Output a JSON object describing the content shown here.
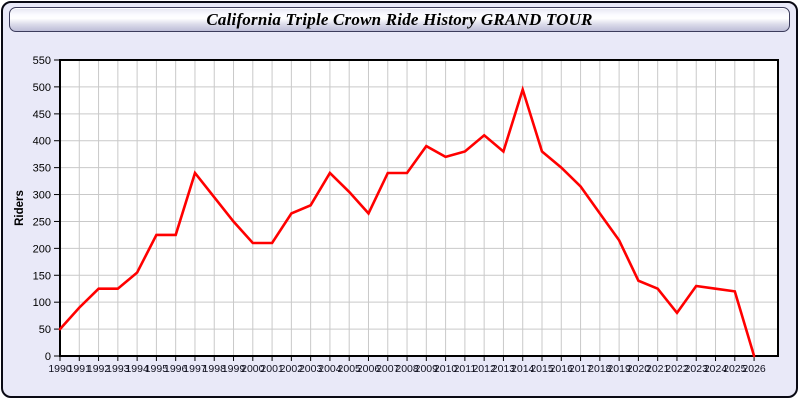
{
  "title_bar": {
    "text": "California Triple Crown Ride History GRAND TOUR"
  },
  "colors": {
    "line": "#ff0000",
    "plot_bg": "#ffffff",
    "grid": "#c9c9c9",
    "frame": "#000000",
    "page_bg": "#e9e9f8",
    "tick_label": "#10101e"
  },
  "chart_data": {
    "type": "line",
    "title": "California Triple Crown Ride History GRAND TOUR",
    "xlabel": "",
    "ylabel": "Riders",
    "ylim": [
      0,
      550
    ],
    "ytick_step": 50,
    "grid": true,
    "legend": "none",
    "x": [
      1990,
      1991,
      1992,
      1993,
      1994,
      1995,
      1996,
      1997,
      1998,
      1999,
      2000,
      2001,
      2002,
      2003,
      2004,
      2005,
      2006,
      2007,
      2008,
      2009,
      2010,
      2011,
      2012,
      2013,
      2014,
      2015,
      2016,
      2017,
      2018,
      2019,
      2020,
      2021,
      2022,
      2023,
      2024,
      2025,
      2026
    ],
    "series": [
      {
        "name": "Riders",
        "color": "#ff0000",
        "values": [
          50,
          90,
          125,
          125,
          155,
          225,
          225,
          340,
          295,
          250,
          210,
          210,
          265,
          280,
          340,
          305,
          265,
          340,
          340,
          390,
          370,
          380,
          410,
          380,
          495,
          380,
          350,
          315,
          265,
          215,
          140,
          125,
          80,
          130,
          125,
          120,
          0
        ]
      }
    ]
  }
}
